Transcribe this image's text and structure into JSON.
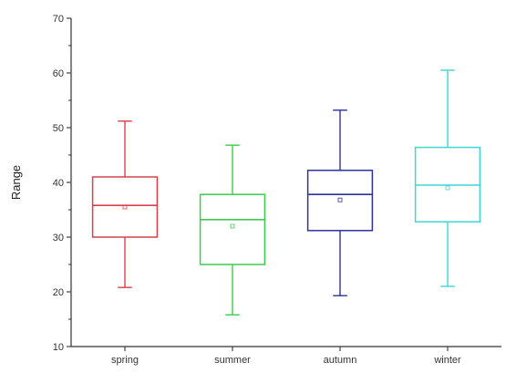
{
  "chart_data": {
    "type": "boxplot",
    "title": "",
    "xlabel": "",
    "ylabel": "Range",
    "ylim": [
      10,
      70
    ],
    "yticks": [
      10,
      20,
      30,
      40,
      50,
      60,
      70
    ],
    "grid": false,
    "categories": [
      "spring",
      "summer",
      "autumn",
      "winter"
    ],
    "boxes": [
      {
        "category": "spring",
        "min": 20.8,
        "q1": 30.0,
        "median": 35.8,
        "mean": 35.5,
        "q3": 41.0,
        "max": 51.2,
        "color": "#d9404c"
      },
      {
        "category": "summer",
        "min": 15.8,
        "q1": 25.0,
        "median": 33.2,
        "mean": 32.0,
        "q3": 37.8,
        "max": 46.8,
        "color": "#3dcc4a"
      },
      {
        "category": "autumn",
        "min": 19.3,
        "q1": 31.2,
        "median": 37.8,
        "mean": 36.8,
        "q3": 42.2,
        "max": 53.2,
        "color": "#3030a0"
      },
      {
        "category": "winter",
        "min": 21.0,
        "q1": 32.8,
        "median": 39.5,
        "mean": 39.0,
        "q3": 46.4,
        "max": 60.5,
        "color": "#40d6d0"
      }
    ]
  }
}
